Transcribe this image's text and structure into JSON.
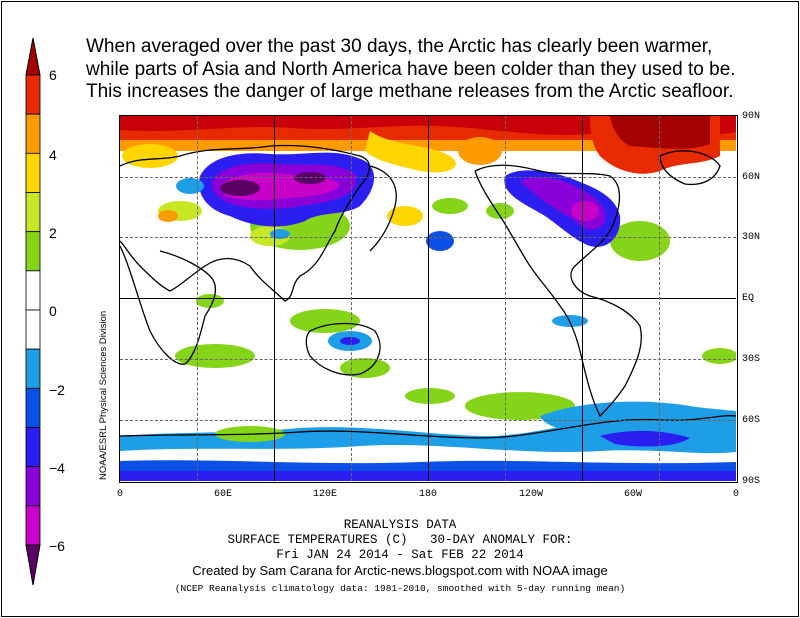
{
  "headline": {
    "line1": "When averaged over the past 30 days, the Arctic has clearly been warmer,",
    "line2": "while parts of Asia and North America have been colder than they used to be.",
    "line3": "This increases the danger of large methane releases from the Arctic seafloor."
  },
  "colorbar": {
    "labels": [
      "6",
      "4",
      "2",
      "0",
      "−2",
      "−4",
      "−6"
    ],
    "colors": [
      "#a50000",
      "#e82a00",
      "#ff9a00",
      "#ffd500",
      "#c6e626",
      "#86d41a",
      "#ffffff",
      "#ffffff",
      "#1e9ee6",
      "#0a50e6",
      "#2a1ef0",
      "#8a00d8",
      "#c800c8",
      "#5a0064"
    ]
  },
  "map": {
    "lat_labels": [
      "90N",
      "60N",
      "30N",
      "EQ",
      "30S",
      "60S",
      "90S"
    ],
    "lon_labels": [
      "0",
      "60E",
      "120E",
      "180",
      "120W",
      "60W",
      "0"
    ],
    "side_label": "NOAA/ESRL Physical Sciences Division"
  },
  "caption": {
    "line1": "REANALYSIS DATA",
    "line2": "SURFACE TEMPERATURES (C)   30-DAY ANOMALY FOR:",
    "line3": "Fri JAN 24 2014 - Sat FEB 22 2014",
    "credit": "Created by Sam Carana for Arctic-news.blogspot.com with NOAA image",
    "fine": "(NCEP Reanalysis climatology data: 1981-2010, smoothed with 5-day running mean)"
  }
}
